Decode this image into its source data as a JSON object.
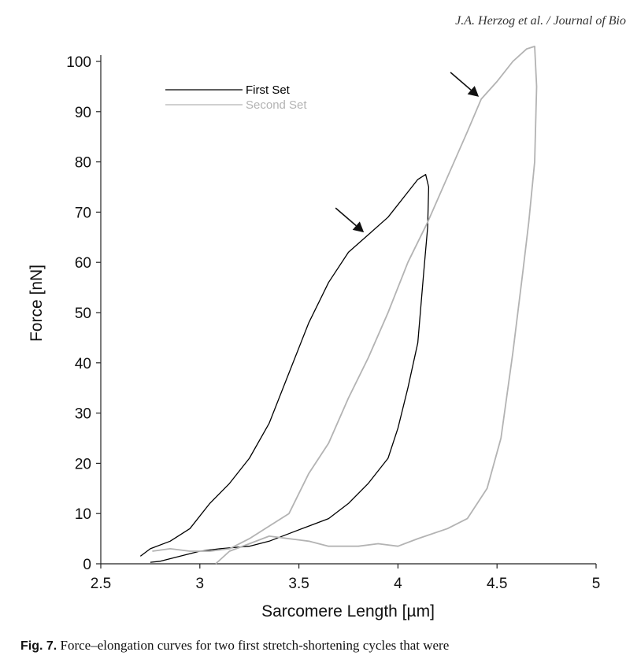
{
  "header_text": "J.A. Herzog et al. / Journal of Bio",
  "chart_data": {
    "type": "line",
    "xlabel": "Sarcomere Length [µm]",
    "ylabel": "Force [nN]",
    "xlim": [
      2.5,
      5
    ],
    "ylim": [
      0,
      100
    ],
    "xticks": [
      "2.5",
      "3",
      "3.5",
      "4",
      "4.5",
      "5"
    ],
    "yticks": [
      "0",
      "10",
      "20",
      "30",
      "40",
      "50",
      "60",
      "70",
      "80",
      "90",
      "100"
    ],
    "xtick_values": [
      2.5,
      3,
      3.5,
      4,
      4.5,
      5
    ],
    "ytick_values": [
      0,
      10,
      20,
      30,
      40,
      50,
      60,
      70,
      80,
      90,
      100
    ],
    "grid": false,
    "legend_position": "top-left",
    "series": [
      {
        "name": "First Set",
        "color": "#000000",
        "points": [
          [
            2.7,
            1.5
          ],
          [
            2.75,
            3.0
          ],
          [
            2.85,
            4.5
          ],
          [
            2.95,
            7.0
          ],
          [
            3.05,
            12.0
          ],
          [
            3.15,
            16.0
          ],
          [
            3.25,
            21.0
          ],
          [
            3.35,
            28.0
          ],
          [
            3.45,
            38.0
          ],
          [
            3.55,
            48.0
          ],
          [
            3.65,
            56.0
          ],
          [
            3.75,
            62.0
          ],
          [
            3.85,
            65.5
          ],
          [
            3.95,
            69.0
          ],
          [
            4.05,
            74.0
          ],
          [
            4.1,
            76.5
          ],
          [
            4.14,
            77.5
          ],
          [
            4.155,
            75.0
          ],
          [
            4.15,
            67.0
          ],
          [
            4.13,
            58.0
          ],
          [
            4.1,
            44.0
          ],
          [
            4.05,
            35.0
          ],
          [
            4.0,
            27.0
          ],
          [
            3.95,
            21.0
          ],
          [
            3.85,
            16.0
          ],
          [
            3.75,
            12.0
          ],
          [
            3.65,
            9.0
          ],
          [
            3.55,
            7.5
          ],
          [
            3.45,
            6.0
          ],
          [
            3.35,
            4.5
          ],
          [
            3.25,
            3.5
          ],
          [
            3.1,
            3.0
          ],
          [
            3.0,
            2.5
          ],
          [
            2.9,
            1.5
          ],
          [
            2.8,
            0.5
          ],
          [
            2.75,
            0.3
          ]
        ]
      },
      {
        "name": "Second Set",
        "color": "#b3b3b3",
        "points": [
          [
            2.76,
            2.5
          ],
          [
            2.85,
            3.0
          ],
          [
            2.95,
            2.5
          ],
          [
            3.05,
            2.5
          ],
          [
            3.15,
            3.0
          ],
          [
            3.25,
            5.0
          ],
          [
            3.35,
            7.5
          ],
          [
            3.45,
            10.0
          ],
          [
            3.55,
            18.0
          ],
          [
            3.65,
            24.0
          ],
          [
            3.75,
            33.0
          ],
          [
            3.85,
            41.0
          ],
          [
            3.95,
            50.0
          ],
          [
            4.05,
            60.0
          ],
          [
            4.15,
            68.0
          ],
          [
            4.25,
            77.0
          ],
          [
            4.35,
            86.0
          ],
          [
            4.42,
            92.5
          ],
          [
            4.5,
            96.0
          ],
          [
            4.58,
            100.0
          ],
          [
            4.65,
            102.5
          ],
          [
            4.69,
            103.0
          ],
          [
            4.7,
            95.0
          ],
          [
            4.69,
            80.0
          ],
          [
            4.66,
            68.0
          ],
          [
            4.63,
            58.0
          ],
          [
            4.58,
            42.0
          ],
          [
            4.52,
            25.0
          ],
          [
            4.45,
            15.0
          ],
          [
            4.35,
            9.0
          ],
          [
            4.25,
            7.0
          ],
          [
            4.1,
            5.0
          ],
          [
            4.0,
            3.5
          ],
          [
            3.9,
            4.0
          ],
          [
            3.8,
            3.5
          ],
          [
            3.65,
            3.5
          ],
          [
            3.55,
            4.5
          ],
          [
            3.45,
            5.0
          ],
          [
            3.35,
            5.5
          ],
          [
            3.25,
            4.0
          ],
          [
            3.15,
            2.5
          ],
          [
            3.08,
            0.0
          ]
        ]
      }
    ],
    "annotations": [
      {
        "type": "arrow",
        "x": 3.84,
        "y": 65.5
      },
      {
        "type": "arrow",
        "x": 4.42,
        "y": 92.5
      }
    ]
  },
  "caption": {
    "label": "Fig. 7.",
    "text": "Force–elongation curves for two first stretch-shortening cycles that were"
  }
}
